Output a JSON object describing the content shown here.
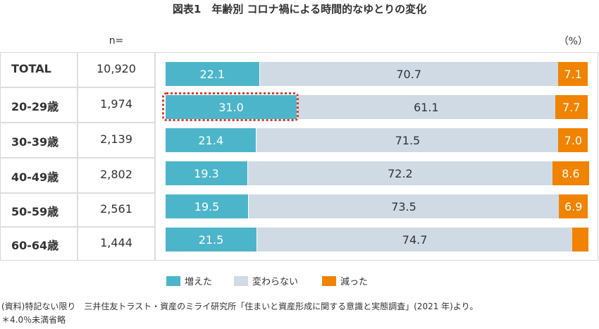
{
  "chart_data": {
    "type": "bar",
    "orientation": "horizontal-stacked-100",
    "title": "図表1　年齢別 コロナ禍による時間的なゆとりの変化",
    "unit": "（%）",
    "n_label": "n=",
    "categories": [
      "TOTAL",
      "20-29歳",
      "30-39歳",
      "40-49歳",
      "50-59歳",
      "60-64歳"
    ],
    "n": [
      "10,920",
      "1,974",
      "2,139",
      "2,802",
      "2,561",
      "1,444"
    ],
    "series": [
      {
        "name": "増えた",
        "color": "#4db5ca",
        "values": [
          22.1,
          31.0,
          21.4,
          19.3,
          19.5,
          21.5
        ],
        "labels": [
          "22.1",
          "31.0",
          "21.4",
          "19.3",
          "19.5",
          "21.5"
        ]
      },
      {
        "name": "変わらない",
        "color": "#d0dae5",
        "values": [
          70.7,
          61.1,
          71.5,
          72.2,
          73.5,
          74.7
        ],
        "labels": [
          "70.7",
          "61.1",
          "71.5",
          "72.2",
          "73.5",
          "74.7"
        ]
      },
      {
        "name": "減った",
        "color": "#f08300",
        "values": [
          7.1,
          7.7,
          7.0,
          8.6,
          6.9,
          3.8
        ],
        "labels": [
          "7.1",
          "7.7",
          "7.0",
          "8.6",
          "6.9",
          ""
        ]
      }
    ],
    "highlight": {
      "category": "20-29歳",
      "series": "増えた",
      "color": "#e03a2a"
    },
    "xlim": [
      0,
      100
    ],
    "legend": "bottom"
  },
  "notes": [
    "(資料)特記ない限り　三井住友トラスト・資産のミライ研究所「住まいと資産形成に関する意識と実態調査」(2021 年)より。",
    "＊4.0％未満省略"
  ]
}
